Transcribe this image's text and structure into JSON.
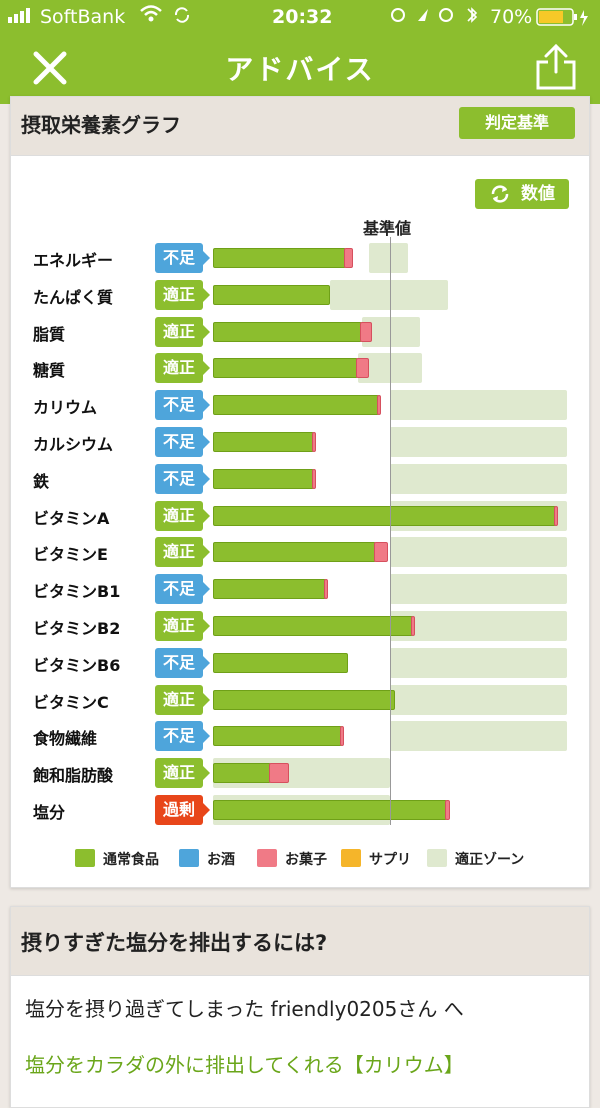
{
  "status": {
    "carrier": "SoftBank",
    "time": "20:32",
    "battery": "70%"
  },
  "nav": {
    "title": "アドバイス"
  },
  "graph_card": {
    "title": "摂取栄養素グラフ",
    "criteria_button": "判定基準",
    "value_button": "数値",
    "reference_label": "基準値",
    "rows": [
      {
        "name": "エネルギー",
        "status": "不足",
        "level": "low",
        "food": 0.75,
        "snack": 0.04,
        "zone": [
          0.88,
          1.1
        ]
      },
      {
        "name": "たんぱく質",
        "status": "適正",
        "level": "ok",
        "food": 0.66,
        "snack": 0.0,
        "zone": [
          0.66,
          1.33
        ]
      },
      {
        "name": "脂質",
        "status": "適正",
        "level": "ok",
        "food": 0.84,
        "snack": 0.06,
        "zone": [
          0.84,
          1.17
        ]
      },
      {
        "name": "糖質",
        "status": "適正",
        "level": "ok",
        "food": 0.82,
        "snack": 0.06,
        "zone": [
          0.82,
          1.18
        ]
      },
      {
        "name": "カリウム",
        "status": "不足",
        "level": "low",
        "food": 0.94,
        "snack": 0.01,
        "zone": [
          1.0,
          2.0
        ]
      },
      {
        "name": "カルシウム",
        "status": "不足",
        "level": "low",
        "food": 0.57,
        "snack": 0.01,
        "zone": [
          1.0,
          2.0
        ]
      },
      {
        "name": "鉄",
        "status": "不足",
        "level": "low",
        "food": 0.57,
        "snack": 0.01,
        "zone": [
          1.0,
          2.0
        ]
      },
      {
        "name": "ビタミンA",
        "status": "適正",
        "level": "ok",
        "food": 1.94,
        "snack": 0.01,
        "zone": [
          1.0,
          2.0
        ]
      },
      {
        "name": "ビタミンE",
        "status": "適正",
        "level": "ok",
        "food": 0.92,
        "snack": 0.07,
        "zone": [
          1.0,
          2.0
        ]
      },
      {
        "name": "ビタミンB1",
        "status": "不足",
        "level": "low",
        "food": 0.64,
        "snack": 0.01,
        "zone": [
          1.0,
          2.0
        ]
      },
      {
        "name": "ビタミンB2",
        "status": "適正",
        "level": "ok",
        "food": 1.13,
        "snack": 0.01,
        "zone": [
          1.0,
          2.0
        ]
      },
      {
        "name": "ビタミンB6",
        "status": "不足",
        "level": "low",
        "food": 0.76,
        "snack": 0.0,
        "zone": [
          1.0,
          2.0
        ]
      },
      {
        "name": "ビタミンC",
        "status": "適正",
        "level": "ok",
        "food": 1.03,
        "snack": 0.0,
        "zone": [
          1.0,
          2.0
        ]
      },
      {
        "name": "食物繊維",
        "status": "不足",
        "level": "low",
        "food": 0.73,
        "snack": 0.01,
        "zone": [
          1.0,
          2.0
        ]
      },
      {
        "name": "飽和脂肪酸",
        "status": "適正",
        "level": "ok",
        "food": 0.33,
        "snack": 0.1,
        "zone": [
          0.0,
          1.0
        ]
      },
      {
        "name": "塩分",
        "status": "過剰",
        "level": "over",
        "food": 1.32,
        "snack": 0.02,
        "zone": [
          0.0,
          1.0
        ]
      }
    ],
    "legend": [
      {
        "label": "通常食品",
        "color": "#8cbe2e"
      },
      {
        "label": "お酒",
        "color": "#4ea5db"
      },
      {
        "label": "お菓子",
        "color": "#f07a86"
      },
      {
        "label": "サプリ",
        "color": "#f5b52a"
      },
      {
        "label": "適正ゾーン",
        "color": "#dfe9cf"
      }
    ]
  },
  "advice_card": {
    "title": "摂りすぎた塩分を排出するには?",
    "message": "塩分を摂り過ぎてしまった friendly0205さん へ",
    "link": "塩分をカラダの外に排出してくれる【カリウム】"
  }
}
